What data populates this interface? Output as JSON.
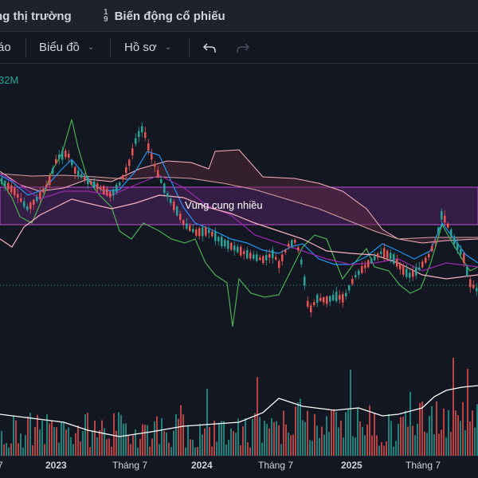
{
  "topbar": {
    "tabs": [
      {
        "label": "ng thị trường"
      },
      {
        "label": "Biến động cổ phiếu",
        "icon": "sort-numeric-icon",
        "icon_digits": [
          "1",
          "9"
        ]
      }
    ]
  },
  "toolbar": {
    "report_label": "áo",
    "chart_label": "Biểu đồ",
    "profile_label": "Hồ sơ",
    "undo_icon": "undo-icon",
    "redo_icon": "redo-icon"
  },
  "volume_indicator": {
    "value_text": "32M"
  },
  "supply_zone": {
    "label": "Vùng cung nhiều"
  },
  "x_axis": {
    "labels": [
      {
        "text": "7",
        "kind": "month"
      },
      {
        "text": "2023",
        "kind": "year"
      },
      {
        "text": "Tháng 7",
        "kind": "month"
      },
      {
        "text": "2024",
        "kind": "year"
      },
      {
        "text": "Tháng 7",
        "kind": "month"
      },
      {
        "text": "2025",
        "kind": "year"
      },
      {
        "text": "Tháng 7",
        "kind": "month"
      }
    ]
  },
  "colors": {
    "background": "#131722",
    "up_candle": "#26a69a",
    "down_candle": "#ef5350",
    "zone_fill": "#7b2f8f",
    "zone_border": "#c54cd6",
    "lead_line": "#4caf50",
    "blue_line": "#2196f3",
    "purple_line": "#9c27b0",
    "pink_line": "#f8b3c0",
    "volume_ma": "#ffffff"
  }
}
